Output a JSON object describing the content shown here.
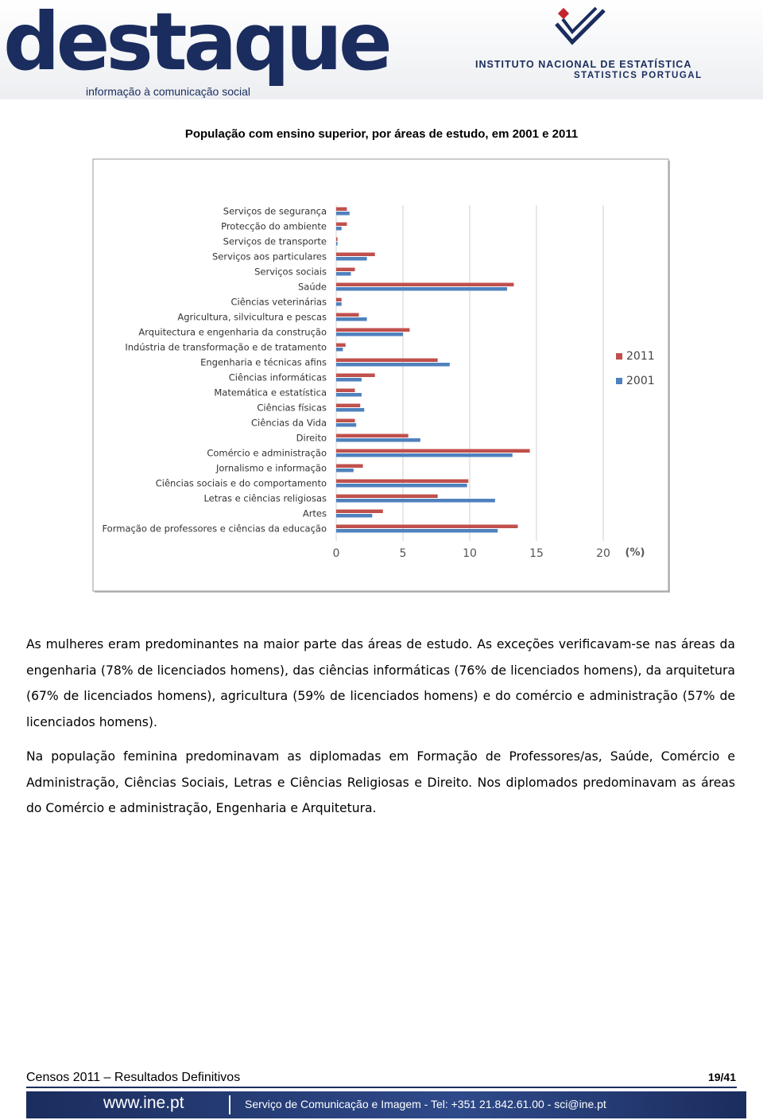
{
  "header": {
    "logo": "destaque",
    "tagline": "informação à comunicação social",
    "institute": "INSTITUTO NACIONAL DE ESTATÍSTICA",
    "institute_en": "STATISTICS PORTUGAL"
  },
  "chart_data": {
    "type": "bar",
    "orientation": "horizontal",
    "title": "População com ensino superior, por áreas de estudo, em 2001 e 2011",
    "categories": [
      "Serviços de segurança",
      "Protecção do ambiente",
      "Serviços de transporte",
      "Serviços aos particulares",
      "Serviços sociais",
      "Saúde",
      "Ciências veterinárias",
      "Agricultura, silvicultura e pescas",
      "Arquitectura e engenharia da construção",
      "Indústria de transformação e de tratamento",
      "Engenharia e técnicas afins",
      "Ciências informáticas",
      "Matemática e estatística",
      "Ciências físicas",
      "Ciências da Vida",
      "Direito",
      "Comércio e administração",
      "Jornalismo e informação",
      "Ciências sociais e do comportamento",
      "Letras e ciências religiosas",
      "Artes",
      "Formação de professores e ciências da educação"
    ],
    "series": [
      {
        "name": "2011",
        "color": "#c0504d",
        "values": [
          0.8,
          0.8,
          0.1,
          2.9,
          1.4,
          13.3,
          0.4,
          1.7,
          5.5,
          0.7,
          7.6,
          2.9,
          1.4,
          1.8,
          1.4,
          5.4,
          14.5,
          2.0,
          9.9,
          7.6,
          3.5,
          13.6
        ]
      },
      {
        "name": "2001",
        "color": "#4f81bd",
        "values": [
          1.0,
          0.4,
          0.1,
          2.3,
          1.1,
          12.8,
          0.4,
          2.3,
          5.0,
          0.5,
          8.5,
          1.9,
          1.9,
          2.1,
          1.5,
          6.3,
          13.2,
          1.3,
          9.8,
          11.9,
          2.7,
          12.1
        ]
      }
    ],
    "x_label": "(%)",
    "xlim": [
      0,
      20
    ],
    "xticks": [
      0,
      5,
      10,
      15,
      20
    ],
    "grid": true,
    "legend": "right"
  },
  "paragraphs": [
    "As mulheres eram predominantes na maior parte das áreas de estudo. As exceções verificavam-se nas áreas da engenharia (78% de licenciados homens), das ciências informáticas (76% de licenciados homens), da arquitetura (67% de licenciados homens), agricultura (59% de licenciados homens) e do comércio e administração (57% de licenciados homens).",
    "Na população feminina predominavam as diplomadas em Formação de Professores/as, Saúde, Comércio e Administração, Ciências Sociais, Letras e Ciências Religiosas e Direito. Nos diplomados predominavam as áreas do Comércio e administração, Engenharia e Arquitetura."
  ],
  "footer": {
    "publication": "Censos 2011 – Resultados Definitivos",
    "page": "19/41",
    "site": "www.ine.pt",
    "contact": "Serviço de Comunicação e Imagem - Tel: +351 21.842.61.00 - sci@ine.pt"
  }
}
